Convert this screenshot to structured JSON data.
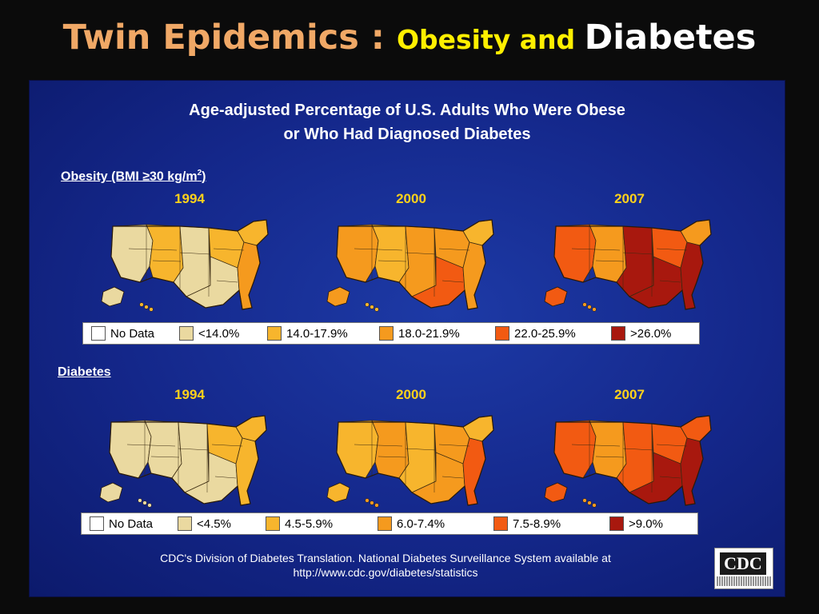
{
  "slide": {
    "title_part1": "Twin Epidemics : ",
    "title_part2": "Obesity and ",
    "title_part3": "Diabetes"
  },
  "panel": {
    "title_line1": "Age-adjusted Percentage of U.S. Adults Who Were Obese",
    "title_line2": "or Who Had Diagnosed Diabetes"
  },
  "colors": {
    "no_data": "#ffffff",
    "level1": "#ead9a0",
    "level2": "#f7b52d",
    "level3": "#f59a1e",
    "level4": "#f25a12",
    "level5": "#a8180e"
  },
  "obesity": {
    "heading_main": "Obesity (BMI ≥30 kg/m",
    "heading_sup": "2",
    "heading_end": ")",
    "years": [
      "1994",
      "2000",
      "2007"
    ],
    "legend": [
      "No Data",
      "<14.0%",
      "14.0-17.9%",
      "18.0-21.9%",
      "22.0-25.9%",
      ">26.0%"
    ],
    "map_palettes": [
      [
        "level1",
        "level2",
        "level1",
        "level2",
        "level1",
        "level2",
        "level3"
      ],
      [
        "level3",
        "level2",
        "level3",
        "level3",
        "level4",
        "level2",
        "level3"
      ],
      [
        "level4",
        "level3",
        "level5",
        "level4",
        "level5",
        "level3",
        "level5"
      ]
    ]
  },
  "diabetes": {
    "heading": "Diabetes",
    "years": [
      "1994",
      "2000",
      "2007"
    ],
    "legend": [
      "No Data",
      "<4.5%",
      "4.5-5.9%",
      "6.0-7.4%",
      "7.5-8.9%",
      ">9.0%"
    ],
    "map_palettes": [
      [
        "level1",
        "level1",
        "level1",
        "level2",
        "level1",
        "level2",
        "level2"
      ],
      [
        "level2",
        "level3",
        "level2",
        "level3",
        "level3",
        "level2",
        "level4"
      ],
      [
        "level4",
        "level3",
        "level4",
        "level4",
        "level5",
        "level4",
        "level5"
      ]
    ]
  },
  "source": {
    "line1": "CDC's Division of Diabetes Translation. National Diabetes Surveillance System available at",
    "line2": "http://www.cdc.gov/diabetes/statistics"
  },
  "logo": {
    "text": "CDC"
  }
}
